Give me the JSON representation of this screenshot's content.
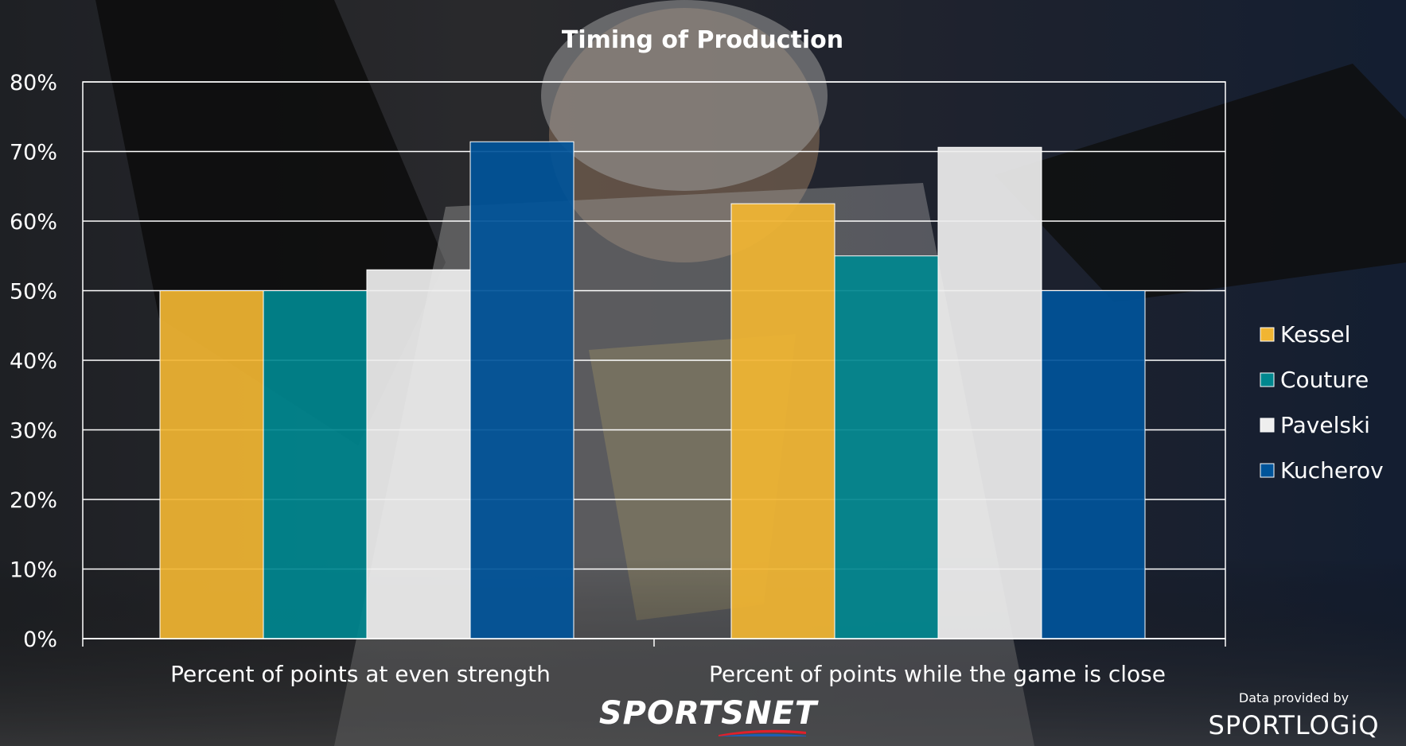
{
  "colors": {
    "Kessel": "#f1b532",
    "Couture": "#00878f",
    "Pavelski": "#eeeeee",
    "Kucherov": "#00549a"
  },
  "chart_data": {
    "type": "bar",
    "title": "Timing of Production",
    "categories": [
      "Percent of points at even strength",
      "Percent of points while the game is close"
    ],
    "series": [
      {
        "name": "Kessel",
        "values": [
          50,
          62.5
        ]
      },
      {
        "name": "Couture",
        "values": [
          50,
          55
        ]
      },
      {
        "name": "Pavelski",
        "values": [
          53,
          70.6
        ]
      },
      {
        "name": "Kucherov",
        "values": [
          71.4,
          50
        ]
      }
    ],
    "ylim": [
      0,
      80
    ],
    "yticks": [
      "0%",
      "10%",
      "20%",
      "30%",
      "40%",
      "50%",
      "60%",
      "70%",
      "80%"
    ],
    "grid": true,
    "legend_position": "right"
  },
  "branding": {
    "logo_text": "SPORTSNET",
    "credit_note": "Data provided by",
    "credit_logo": "SPORTLOGiQ"
  }
}
